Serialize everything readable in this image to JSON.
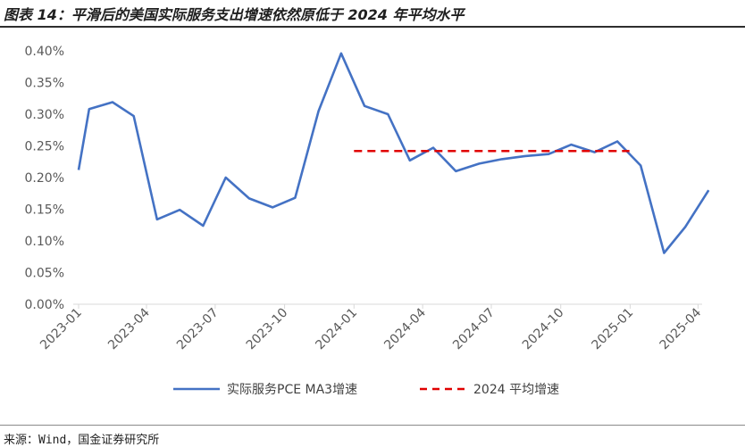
{
  "header": {
    "title": "图表 14：平滑后的美国实际服务支出增速依然原低于 2024 年平均水平"
  },
  "footer": {
    "source": "来源：Wind，国金证券研究所"
  },
  "colors": {
    "series_line": "#4472C4",
    "avg_line": "#E00000",
    "axis": "#d9d9d9",
    "tick_text": "#595959"
  },
  "chart_data": {
    "type": "line",
    "title": "",
    "xlabel": "",
    "ylabel": "",
    "ylim": [
      0,
      0.4
    ],
    "y_ticks": [
      "0.00%",
      "0.05%",
      "0.10%",
      "0.15%",
      "0.20%",
      "0.25%",
      "0.30%",
      "0.35%",
      "0.40%"
    ],
    "y_tick_values": [
      0,
      0.05,
      0.1,
      0.15,
      0.2,
      0.25,
      0.3,
      0.35,
      0.4
    ],
    "x_ticks": [
      "2023-01",
      "2023-04",
      "2023-07",
      "2023-10",
      "2024-01",
      "2024-04",
      "2024-07",
      "2024-10",
      "2025-01",
      "2025-04"
    ],
    "x_tick_dates": [
      "2023-01-01",
      "2023-04-01",
      "2023-07-01",
      "2023-10-01",
      "2024-01-01",
      "2024-04-01",
      "2024-07-01",
      "2024-10-01",
      "2025-01-01",
      "2025-04-01"
    ],
    "legend_position": "bottom",
    "grid": false,
    "series": [
      {
        "name": "实际服务PCE MA3增速",
        "x": [
          "2023-01-01",
          "2023-01-15",
          "2023-02-15",
          "2023-03-15",
          "2023-04-15",
          "2023-05-15",
          "2023-06-15",
          "2023-07-15",
          "2023-08-15",
          "2023-09-15",
          "2023-10-15",
          "2023-11-15",
          "2023-12-15",
          "2024-01-15",
          "2024-02-15",
          "2024-03-15",
          "2024-04-15",
          "2024-05-15",
          "2024-06-15",
          "2024-07-15",
          "2024-08-15",
          "2024-09-15",
          "2024-10-15",
          "2024-11-15",
          "2024-12-15",
          "2025-01-15",
          "2025-02-15",
          "2025-03-15",
          "2025-04-15"
        ],
        "values": [
          0.212,
          0.308,
          0.319,
          0.297,
          0.134,
          0.149,
          0.124,
          0.2,
          0.167,
          0.153,
          0.168,
          0.305,
          0.396,
          0.313,
          0.3,
          0.227,
          0.247,
          0.21,
          0.222,
          0.229,
          0.234,
          0.237,
          0.252,
          0.24,
          0.257,
          0.219,
          0.081,
          0.122,
          0.18
        ]
      },
      {
        "name": "2024 平均增速",
        "style": "dashed",
        "x": [
          "2024-01-01",
          "2024-12-31"
        ],
        "values": [
          0.242,
          0.242
        ]
      }
    ]
  }
}
